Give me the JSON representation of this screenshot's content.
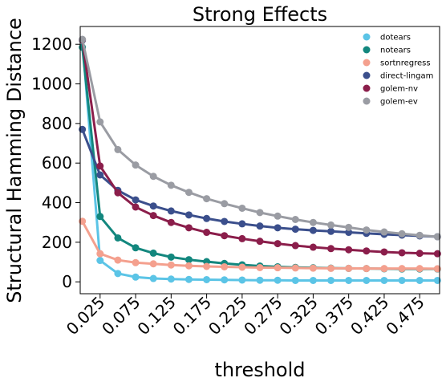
{
  "chart_data": {
    "type": "line",
    "title": "Strong Effects",
    "xlabel": "threshold",
    "ylabel": "Structural Hamming Distance",
    "xlim": [
      -0.003,
      0.503
    ],
    "ylim": [
      -60,
      1290
    ],
    "x": [
      0.0,
      0.025,
      0.05,
      0.075,
      0.1,
      0.125,
      0.15,
      0.175,
      0.2,
      0.225,
      0.25,
      0.275,
      0.3,
      0.325,
      0.35,
      0.375,
      0.4,
      0.425,
      0.45,
      0.475,
      0.5
    ],
    "x_ticks": [
      0.025,
      0.075,
      0.125,
      0.175,
      0.225,
      0.275,
      0.325,
      0.375,
      0.425,
      0.475
    ],
    "x_tick_labels": [
      "0.025",
      "0.075",
      "0.125",
      "0.175",
      "0.225",
      "0.275",
      "0.325",
      "0.375",
      "0.425",
      "0.475"
    ],
    "y_ticks": [
      0,
      200,
      400,
      600,
      800,
      1000,
      1200
    ],
    "y_tick_labels": [
      "0",
      "200",
      "400",
      "600",
      "800",
      "1000",
      "1200"
    ],
    "grid": false,
    "legend_position": "top-right",
    "series": [
      {
        "name": "dotears",
        "color": "#5bc4e6",
        "values": [
          1220,
          108,
          42,
          24,
          17,
          14,
          12,
          11,
          10,
          9,
          8,
          8,
          7,
          7,
          7,
          7,
          7,
          7,
          7,
          7,
          7
        ]
      },
      {
        "name": "notears",
        "color": "#13877e",
        "values": [
          1185,
          330,
          222,
          172,
          145,
          125,
          112,
          102,
          93,
          86,
          80,
          76,
          73,
          71,
          69,
          68,
          67,
          66,
          65,
          65,
          65
        ]
      },
      {
        "name": "sortnregress",
        "color": "#f4a08e",
        "values": [
          306,
          142,
          110,
          97,
          91,
          85,
          81,
          78,
          76,
          74,
          72,
          71,
          70,
          69,
          68,
          68,
          67,
          67,
          67,
          67,
          66
        ]
      },
      {
        "name": "direct-lingam",
        "color": "#3b4f8c",
        "values": [
          770,
          540,
          462,
          414,
          383,
          358,
          338,
          320,
          305,
          293,
          282,
          273,
          266,
          260,
          255,
          250,
          245,
          240,
          236,
          232,
          228
        ]
      },
      {
        "name": "golem-nv",
        "color": "#8b1e4b",
        "values": [
          1222,
          585,
          450,
          378,
          335,
          300,
          273,
          250,
          233,
          218,
          205,
          193,
          183,
          175,
          168,
          162,
          156,
          151,
          147,
          144,
          142
        ]
      },
      {
        "name": "golem-ev",
        "color": "#9a9ca3",
        "values": [
          1225,
          808,
          668,
          590,
          533,
          488,
          452,
          420,
          395,
          372,
          350,
          332,
          315,
          300,
          287,
          275,
          262,
          252,
          243,
          235,
          228
        ]
      }
    ]
  }
}
